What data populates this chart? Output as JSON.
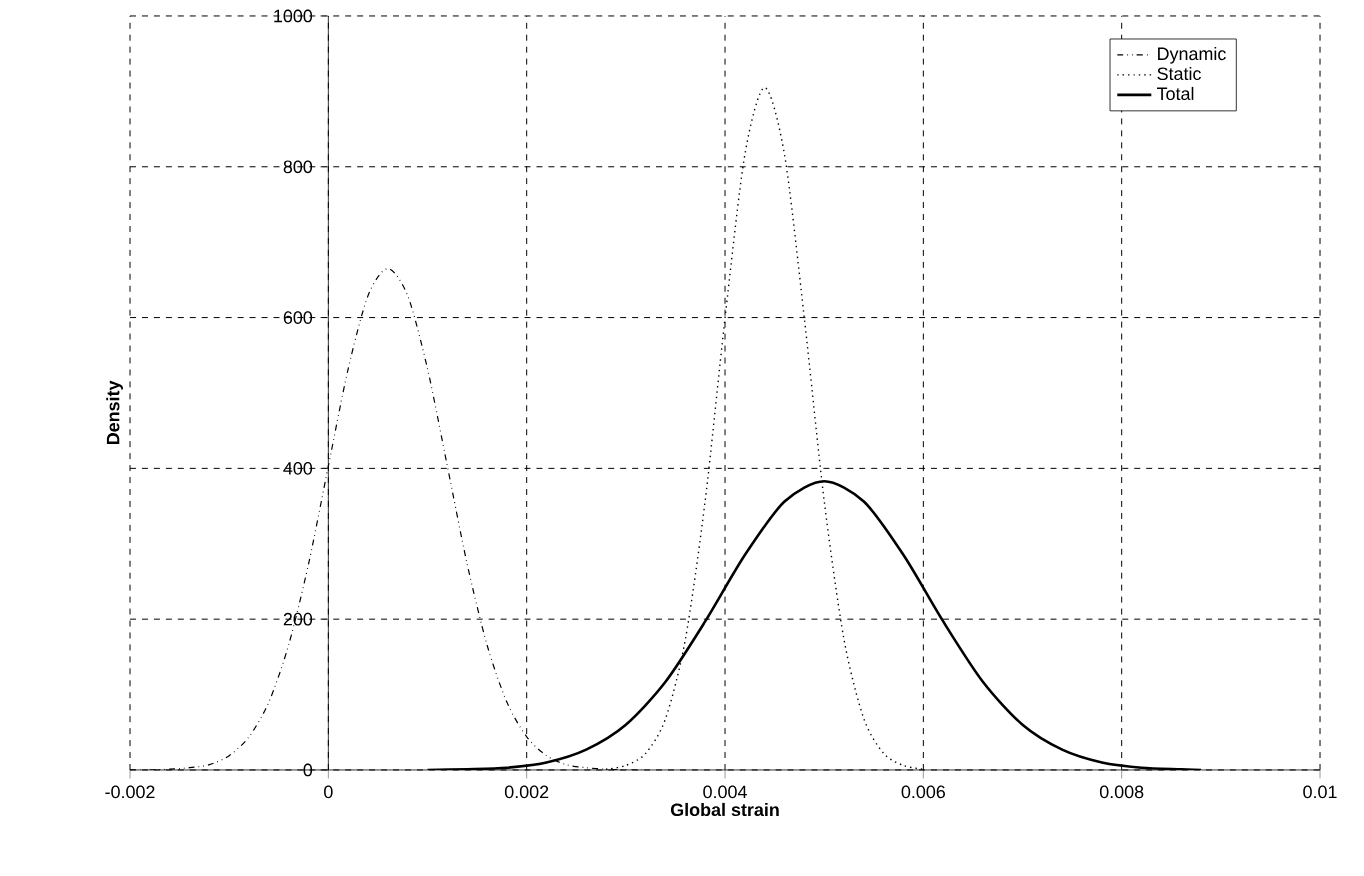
{
  "chart_data": {
    "type": "line",
    "xlabel": "Global strain",
    "ylabel": "Density",
    "xlim": [
      -0.002,
      0.01
    ],
    "ylim": [
      0,
      1000
    ],
    "xticks": [
      -0.002,
      0,
      0.002,
      0.004,
      0.006,
      0.008,
      0.01
    ],
    "yticks": [
      0,
      200,
      400,
      600,
      800,
      1000
    ],
    "grid": true,
    "legend": "top right",
    "marker": "none",
    "series": [
      {
        "name": "Dynamic",
        "color": "#000000",
        "line_style": "dashdotdotted",
        "x": [
          -0.002,
          -0.0018,
          -0.0016,
          -0.0014,
          -0.0012,
          -0.001,
          -0.0008,
          -0.0006,
          -0.0004,
          -0.0002,
          0,
          0.0002,
          0.0004,
          0.0006,
          0.0008,
          0.001,
          0.0012,
          0.0014,
          0.0016,
          0.0018,
          0.002,
          0.0022,
          0.0024,
          0.0026,
          0.0028,
          0.003,
          0.0032
        ],
        "values": [
          0,
          0,
          1,
          3,
          7,
          19,
          44,
          90,
          166,
          273,
          403,
          532,
          629,
          665,
          629,
          532,
          403,
          273,
          166,
          90,
          44,
          19,
          7,
          3,
          1,
          0,
          0
        ]
      },
      {
        "name": "Static",
        "color": "#000000",
        "line_style": "dotted",
        "x": [
          0.0028,
          0.003,
          0.0032,
          0.0034,
          0.0036,
          0.0038,
          0.004,
          0.0042,
          0.0044,
          0.0046,
          0.0048,
          0.005,
          0.0052,
          0.0054,
          0.0056,
          0.0058,
          0.006
        ],
        "values": [
          1,
          6,
          22,
          68,
          173,
          357,
          599,
          816,
          905,
          816,
          599,
          357,
          173,
          68,
          22,
          6,
          1
        ]
      },
      {
        "name": "Total",
        "color": "#000000",
        "line_style": "solid",
        "x": [
          0.001,
          0.0014,
          0.0018,
          0.0022,
          0.0026,
          0.003,
          0.0034,
          0.0038,
          0.0042,
          0.0046,
          0.005,
          0.0054,
          0.0058,
          0.0062,
          0.0066,
          0.007,
          0.0074,
          0.0078,
          0.0082,
          0.0086,
          0.0088
        ],
        "values": [
          0,
          1,
          3,
          10,
          27,
          60,
          117,
          197,
          285,
          356,
          383,
          356,
          285,
          197,
          117,
          60,
          27,
          10,
          3,
          1,
          0
        ]
      }
    ]
  }
}
